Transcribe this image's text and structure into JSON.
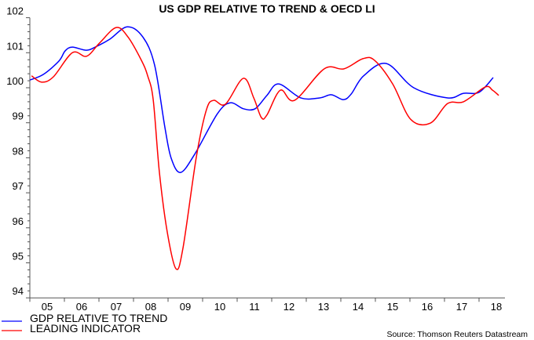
{
  "chart_data": {
    "type": "line",
    "title": "US GDP RELATIVE TO TREND & OECD LI",
    "xlabel": "",
    "ylabel": "",
    "xlim": [
      2005,
      2018.75
    ],
    "ylim": [
      94,
      102
    ],
    "yticks": [
      94,
      95,
      96,
      97,
      98,
      99,
      100,
      101,
      102
    ],
    "xtick_labels": [
      "05",
      "06",
      "07",
      "08",
      "09",
      "10",
      "11",
      "12",
      "13",
      "14",
      "15",
      "16",
      "17",
      "18"
    ],
    "grid": false,
    "legend_position": "bottom-left",
    "source": "Source: Thomson Reuters Datastream",
    "series": [
      {
        "name": "GDP RELATIVE TO TREND",
        "color": "#0000ff",
        "x": [
          2005.0,
          2005.39,
          2005.84,
          2006.02,
          2006.23,
          2006.64,
          2006.93,
          2007.32,
          2007.82,
          2008.27,
          2008.61,
          2008.91,
          2009.09,
          2009.36,
          2009.77,
          2010.43,
          2010.8,
          2011.18,
          2011.52,
          2011.86,
          2012.2,
          2012.84,
          2013.39,
          2013.73,
          2014.07,
          2014.3,
          2014.66,
          2015.32,
          2016.11,
          2017.09,
          2017.55,
          2018.0,
          2018.41
        ],
        "y": [
          100.22,
          100.38,
          100.76,
          101.05,
          101.16,
          101.07,
          101.18,
          101.39,
          101.74,
          101.45,
          100.65,
          98.86,
          97.99,
          97.58,
          98.1,
          99.26,
          99.57,
          99.4,
          99.4,
          99.78,
          100.11,
          99.71,
          99.71,
          99.8,
          99.66,
          99.82,
          100.34,
          100.69,
          100.0,
          99.71,
          99.84,
          99.87,
          100.29
        ]
      },
      {
        "name": "LEADING INDICATOR",
        "color": "#ff0000",
        "x": [
          2005.05,
          2005.34,
          2005.68,
          2006.23,
          2006.64,
          2007.02,
          2007.5,
          2007.84,
          2008.23,
          2008.41,
          2008.57,
          2008.75,
          2008.98,
          2009.23,
          2009.43,
          2009.82,
          2010.11,
          2010.32,
          2010.66,
          2011.18,
          2011.48,
          2011.7,
          2011.86,
          2012.25,
          2012.66,
          2013.52,
          2014.09,
          2014.64,
          2014.98,
          2015.5,
          2016.02,
          2016.59,
          2017.09,
          2017.55,
          2018.18,
          2018.39,
          2018.57
        ],
        "y": [
          100.34,
          100.16,
          100.31,
          101.0,
          100.9,
          101.28,
          101.72,
          101.45,
          100.78,
          100.34,
          99.66,
          97.58,
          95.86,
          94.83,
          95.41,
          98.03,
          99.37,
          99.64,
          99.53,
          100.27,
          99.71,
          99.15,
          99.22,
          99.93,
          99.64,
          100.54,
          100.54,
          100.83,
          100.78,
          100.11,
          99.1,
          98.99,
          99.55,
          99.6,
          100.02,
          99.93,
          99.78
        ]
      }
    ]
  }
}
